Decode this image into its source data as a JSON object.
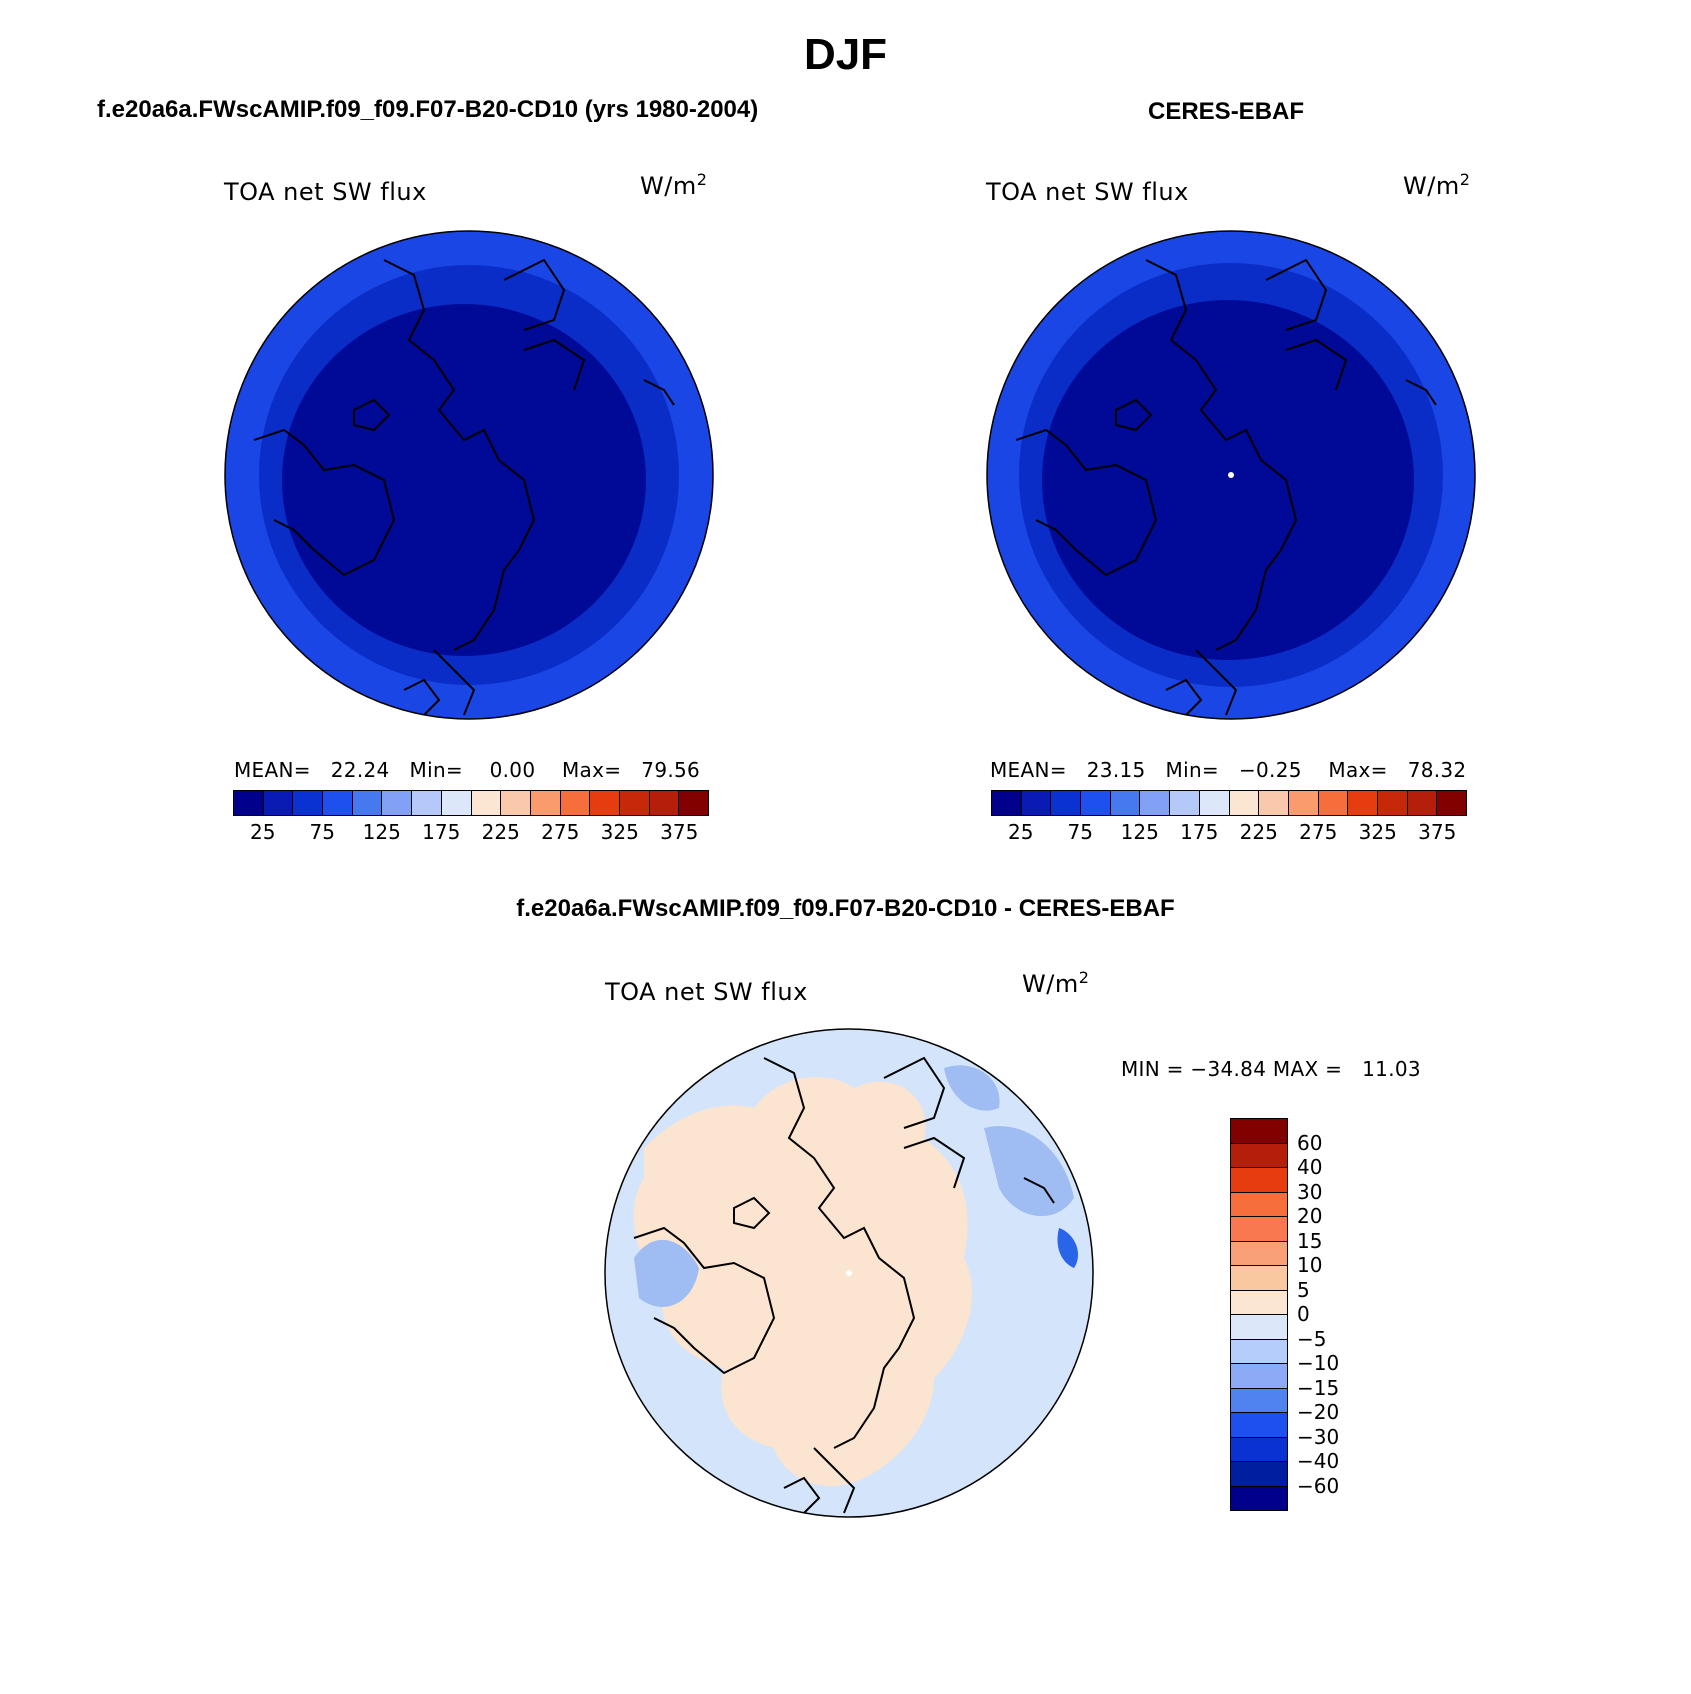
{
  "figure": {
    "title": "DJF"
  },
  "panels": {
    "model": {
      "header": "f.e20a6a.FWscAMIP.f09_f09.F07-B20-CD10 (yrs 1980-2004)",
      "variable": "TOA net SW flux",
      "units_base": "W/m",
      "units_exp": "2",
      "stats": {
        "mean_label": "MEAN=",
        "mean": "22.24",
        "min_label": "Min=",
        "min": "0.00",
        "max_label": "Max=",
        "max": "79.56"
      }
    },
    "obs": {
      "header": "CERES-EBAF",
      "variable": "TOA net SW flux",
      "units_base": "W/m",
      "units_exp": "2",
      "stats": {
        "mean_label": "MEAN=",
        "mean": "23.15",
        "min_label": "Min=",
        "min": "−0.25",
        "max_label": "Max=",
        "max": "78.32"
      }
    },
    "diff": {
      "header": "f.e20a6a.FWscAMIP.f09_f09.F07-B20-CD10 - CERES-EBAF",
      "variable": "TOA net SW flux",
      "units_base": "W/m",
      "units_exp": "2",
      "stats": {
        "min_label": "MIN =",
        "min": "−34.84",
        "max_label": "MAX =",
        "max": "11.03"
      }
    }
  },
  "colorbar_abs": {
    "colors": [
      "#00008c",
      "#0a1ab4",
      "#0a32d2",
      "#1e50f0",
      "#4678f0",
      "#82a0f5",
      "#b4c8fa",
      "#dce8fa",
      "#fae6d2",
      "#fac8aa",
      "#fa9b6e",
      "#f56e3c",
      "#e63c0f",
      "#c8280a",
      "#b41e0a",
      "#820000"
    ],
    "tick_labels": [
      "25",
      "75",
      "125",
      "175",
      "225",
      "275",
      "325",
      "375"
    ]
  },
  "colorbar_diff": {
    "colors": [
      "#820000",
      "#b41e0a",
      "#e63c0f",
      "#f56e3c",
      "#fa7850",
      "#faa078",
      "#fac8a0",
      "#fae6d2",
      "#dce8fa",
      "#b4cdfa",
      "#8caaf5",
      "#5082f0",
      "#1e50f0",
      "#0a32d2",
      "#001ea0",
      "#00008c"
    ],
    "labels": [
      "60",
      "40",
      "30",
      "20",
      "15",
      "10",
      "5",
      "0",
      "−5",
      "−10",
      "−15",
      "−20",
      "−30",
      "−40",
      "−60"
    ]
  },
  "map_fill": {
    "abs_outer": "#1a46e6",
    "abs_middle": "#0a2dc8",
    "abs_inner": "#000a96",
    "diff_ocean": "#d4e5fb",
    "diff_land": "#fbe4d0",
    "diff_patch": "#9fbdf3",
    "diff_strong": "#2a64e8",
    "coast": "#000000"
  }
}
